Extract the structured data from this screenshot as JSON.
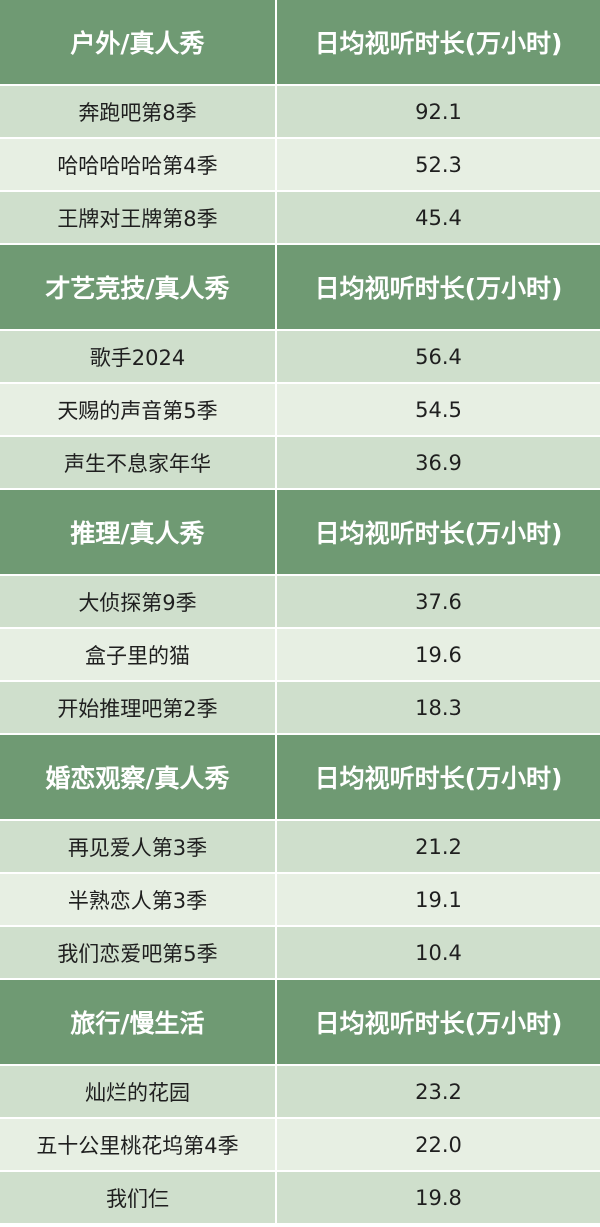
{
  "colors": {
    "header_bg": "#6f9a73",
    "row_dark": "#cfdfcc",
    "row_light": "#e7efe3",
    "header_text": "#ffffff"
  },
  "sections": [
    {
      "category": "户外/真人秀",
      "metric_header": "日均视听时长(万小时)",
      "rows": [
        {
          "name": "奔跑吧第8季",
          "value": "92.1"
        },
        {
          "name": "哈哈哈哈哈第4季",
          "value": "52.3"
        },
        {
          "name": "王牌对王牌第8季",
          "value": "45.4"
        }
      ]
    },
    {
      "category": "才艺竞技/真人秀",
      "metric_header": "日均视听时长(万小时)",
      "rows": [
        {
          "name": "歌手2024",
          "value": "56.4"
        },
        {
          "name": "天赐的声音第5季",
          "value": "54.5"
        },
        {
          "name": "声生不息家年华",
          "value": "36.9"
        }
      ]
    },
    {
      "category": "推理/真人秀",
      "metric_header": "日均视听时长(万小时)",
      "rows": [
        {
          "name": "大侦探第9季",
          "value": "37.6"
        },
        {
          "name": "盒子里的猫",
          "value": "19.6"
        },
        {
          "name": "开始推理吧第2季",
          "value": "18.3"
        }
      ]
    },
    {
      "category": "婚恋观察/真人秀",
      "metric_header": "日均视听时长(万小时)",
      "rows": [
        {
          "name": "再见爱人第3季",
          "value": "21.2"
        },
        {
          "name": "半熟恋人第3季",
          "value": "19.1"
        },
        {
          "name": "我们恋爱吧第5季",
          "value": "10.4"
        }
      ]
    },
    {
      "category": "旅行/慢生活",
      "metric_header": "日均视听时长(万小时)",
      "rows": [
        {
          "name": "灿烂的花园",
          "value": "23.2"
        },
        {
          "name": "五十公里桃花坞第4季",
          "value": "22.0"
        },
        {
          "name": "我们仨",
          "value": "19.8"
        }
      ]
    }
  ]
}
